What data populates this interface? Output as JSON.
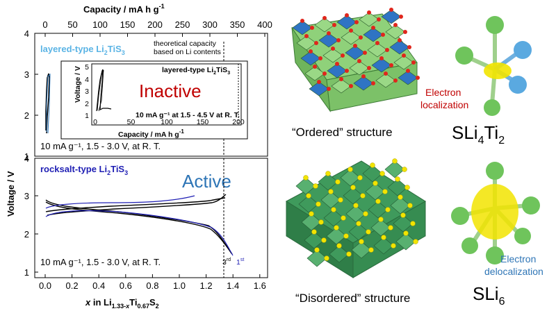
{
  "top_axis": {
    "title": "Capacity   /   mA h g",
    "title_sup": "-1",
    "ticks": [
      "0",
      "50",
      "100",
      "150",
      "200",
      "250",
      "300",
      "350",
      "400"
    ]
  },
  "y_axis": {
    "title": "Voltage   /   V"
  },
  "upper_panel": {
    "y_ticks": [
      "4",
      "3",
      "2",
      "1"
    ],
    "title_prefix": "layered-type Li",
    "title_sub1": "2",
    "title_mid": "TiS",
    "title_sub2": "3",
    "note_line1": "theoretical capacity",
    "note_line2": "based on Li contents",
    "condition": "10 mA g⁻¹, 1.5 - 3.0 V, at R. T.",
    "state": "Inactive",
    "inset": {
      "title_prefix": "layered-type Li",
      "title_sub1": "2",
      "title_mid": "TiS",
      "title_sub2": "3",
      "ylabel": "Voltage   /   V",
      "y_ticks": [
        "5",
        "4",
        "3",
        "2",
        "1"
      ],
      "x_ticks": [
        "0",
        "50",
        "100",
        "150",
        "200"
      ],
      "xlabel": "Capacity   /   mA h g",
      "xlabel_sup": "-1",
      "condition": "10 mA g⁻¹ at 1.5 - 4.5 V at R. T."
    }
  },
  "lower_panel": {
    "y_ticks": [
      "4",
      "3",
      "2",
      "1"
    ],
    "title_prefix": "rocksalt-type Li",
    "title_sub1": "2",
    "title_mid": "TiS",
    "title_sub2": "3",
    "state": "Active",
    "condition": "10 mA g⁻¹, 1.5 - 3.0 V, at R. T.",
    "cycle3": "3",
    "cycle3_sup": "rd",
    "cycle1": "1",
    "cycle1_sup": "st"
  },
  "bottom_axis": {
    "ticks": [
      "0.0",
      "0.2",
      "0.4",
      "0.6",
      "0.8",
      "1.0",
      "1.2",
      "1.4",
      "1.6"
    ],
    "title_x": "x",
    "title_in": " in Li",
    "title_s1": "1.33-",
    "title_s1x": "x",
    "title_ti": "Ti",
    "title_s2": "0.67",
    "title_s": "S",
    "title_s3": "2"
  },
  "structures": {
    "ordered_caption": "“Ordered” structure",
    "disordered_caption": "“Disordered” structure",
    "formula1_main": "SLi",
    "formula1_s1": "4",
    "formula1_mid": "Ti",
    "formula1_s2": "2",
    "formula2_main": "SLi",
    "formula2_s1": "6",
    "label_localization_1": "Electron",
    "label_localization_2": "localization",
    "label_delocalization_1": "Electron",
    "label_delocalization_2": "delocalization"
  },
  "colors": {
    "inactive": "#c00000",
    "active": "#2e75b6",
    "layered_title": "#5bb4e5",
    "rocksalt_title": "#1f1fb4",
    "green_octa": "#8fd17a",
    "blue_octa": "#2f74c4",
    "dark_green": "#3f9a5c",
    "yellow": "#f2e400"
  }
}
